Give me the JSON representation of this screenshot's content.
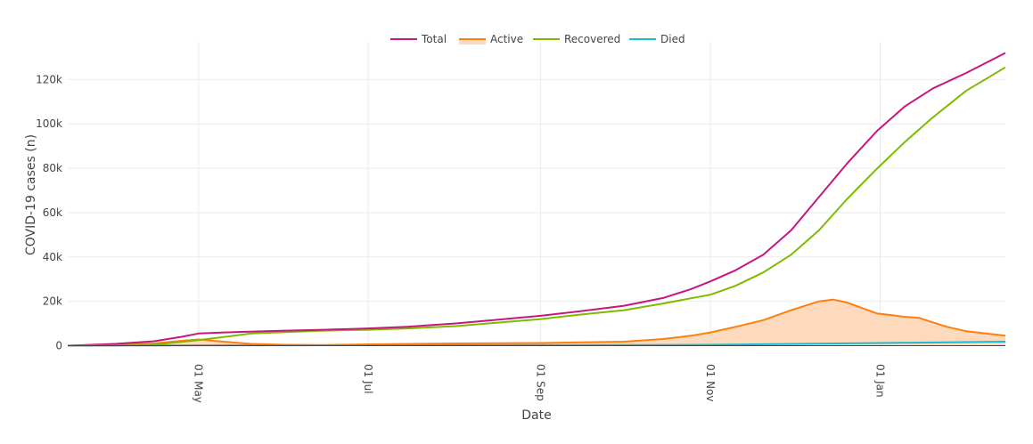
{
  "chart_data": {
    "type": "line",
    "title": "",
    "xlabel": "Date",
    "ylabel": "COVID-19 cases (n)",
    "x_range": [
      "2021-03-15",
      "2022-02-15"
    ],
    "y_range": [
      -1000,
      137000
    ],
    "y_ticks": [
      {
        "value": 0,
        "label": "0"
      },
      {
        "value": 20000,
        "label": "20k"
      },
      {
        "value": 40000,
        "label": "40k"
      },
      {
        "value": 60000,
        "label": "60k"
      },
      {
        "value": 80000,
        "label": "80k"
      },
      {
        "value": 100000,
        "label": "100k"
      },
      {
        "value": 120000,
        "label": "120k"
      }
    ],
    "x_ticks": [
      {
        "date": "2021-05-01",
        "label": "01 May"
      },
      {
        "date": "2021-07-01",
        "label": "01 Jul"
      },
      {
        "date": "2021-09-01",
        "label": "01 Sep"
      },
      {
        "date": "2021-11-01",
        "label": "01 Nov"
      },
      {
        "date": "2022-01-01",
        "label": "01 Jan"
      }
    ],
    "grid": true,
    "legend_position": "top-center",
    "series": [
      {
        "name": "Total",
        "color": "#c7177e",
        "fill": false,
        "points": [
          [
            "2021-03-15",
            0
          ],
          [
            "2021-04-01",
            800
          ],
          [
            "2021-04-15",
            2000
          ],
          [
            "2021-04-25",
            4000
          ],
          [
            "2021-05-01",
            5500
          ],
          [
            "2021-05-15",
            6200
          ],
          [
            "2021-06-01",
            6800
          ],
          [
            "2021-06-15",
            7200
          ],
          [
            "2021-07-01",
            7800
          ],
          [
            "2021-07-15",
            8500
          ],
          [
            "2021-08-01",
            10000
          ],
          [
            "2021-08-15",
            11500
          ],
          [
            "2021-09-01",
            13500
          ],
          [
            "2021-09-15",
            15500
          ],
          [
            "2021-10-01",
            18000
          ],
          [
            "2021-10-15",
            21500
          ],
          [
            "2021-10-25",
            25500
          ],
          [
            "2021-11-01",
            29000
          ],
          [
            "2021-11-10",
            34000
          ],
          [
            "2021-11-20",
            41000
          ],
          [
            "2021-11-30",
            52000
          ],
          [
            "2021-12-10",
            67000
          ],
          [
            "2021-12-20",
            82000
          ],
          [
            "2021-12-31",
            97000
          ],
          [
            "2022-01-10",
            108000
          ],
          [
            "2022-01-20",
            116000
          ],
          [
            "2022-02-01",
            123000
          ],
          [
            "2022-02-15",
            132000
          ]
        ]
      },
      {
        "name": "Active",
        "color": "#ff7f0e",
        "fill": true,
        "fill_color": "#fdd9bd",
        "points": [
          [
            "2021-03-15",
            0
          ],
          [
            "2021-04-15",
            1000
          ],
          [
            "2021-04-25",
            2200
          ],
          [
            "2021-05-01",
            2800
          ],
          [
            "2021-05-10",
            1800
          ],
          [
            "2021-05-20",
            800
          ],
          [
            "2021-06-01",
            400
          ],
          [
            "2021-06-15",
            300
          ],
          [
            "2021-07-01",
            600
          ],
          [
            "2021-08-01",
            1000
          ],
          [
            "2021-09-01",
            1200
          ],
          [
            "2021-10-01",
            1800
          ],
          [
            "2021-10-15",
            3000
          ],
          [
            "2021-10-25",
            4500
          ],
          [
            "2021-11-01",
            6000
          ],
          [
            "2021-11-10",
            8500
          ],
          [
            "2021-11-20",
            11500
          ],
          [
            "2021-11-30",
            16000
          ],
          [
            "2021-12-10",
            20000
          ],
          [
            "2021-12-15",
            20800
          ],
          [
            "2021-12-20",
            19500
          ],
          [
            "2021-12-31",
            14500
          ],
          [
            "2022-01-05",
            13800
          ],
          [
            "2022-01-10",
            13000
          ],
          [
            "2022-01-15",
            12500
          ],
          [
            "2022-01-25",
            8500
          ],
          [
            "2022-02-01",
            6500
          ],
          [
            "2022-02-15",
            4500
          ]
        ]
      },
      {
        "name": "Recovered",
        "color": "#7fba00",
        "fill": false,
        "points": [
          [
            "2021-03-15",
            0
          ],
          [
            "2021-04-15",
            500
          ],
          [
            "2021-05-01",
            2500
          ],
          [
            "2021-05-20",
            5500
          ],
          [
            "2021-06-15",
            6800
          ],
          [
            "2021-07-01",
            7200
          ],
          [
            "2021-07-15",
            7800
          ],
          [
            "2021-08-01",
            8800
          ],
          [
            "2021-09-01",
            12000
          ],
          [
            "2021-09-15",
            14000
          ],
          [
            "2021-10-01",
            16000
          ],
          [
            "2021-10-15",
            19000
          ],
          [
            "2021-11-01",
            23000
          ],
          [
            "2021-11-10",
            27000
          ],
          [
            "2021-11-20",
            33000
          ],
          [
            "2021-11-30",
            41000
          ],
          [
            "2021-12-10",
            52000
          ],
          [
            "2021-12-20",
            66000
          ],
          [
            "2021-12-31",
            80000
          ],
          [
            "2022-01-10",
            92000
          ],
          [
            "2022-01-20",
            103000
          ],
          [
            "2022-02-01",
            115000
          ],
          [
            "2022-02-15",
            125500
          ]
        ]
      },
      {
        "name": "Died",
        "color": "#17becf",
        "fill": false,
        "points": [
          [
            "2021-03-15",
            0
          ],
          [
            "2021-05-01",
            150
          ],
          [
            "2021-07-01",
            200
          ],
          [
            "2021-09-01",
            250
          ],
          [
            "2021-11-01",
            400
          ],
          [
            "2021-12-01",
            800
          ],
          [
            "2022-01-01",
            1200
          ],
          [
            "2022-02-15",
            1800
          ]
        ]
      }
    ]
  }
}
